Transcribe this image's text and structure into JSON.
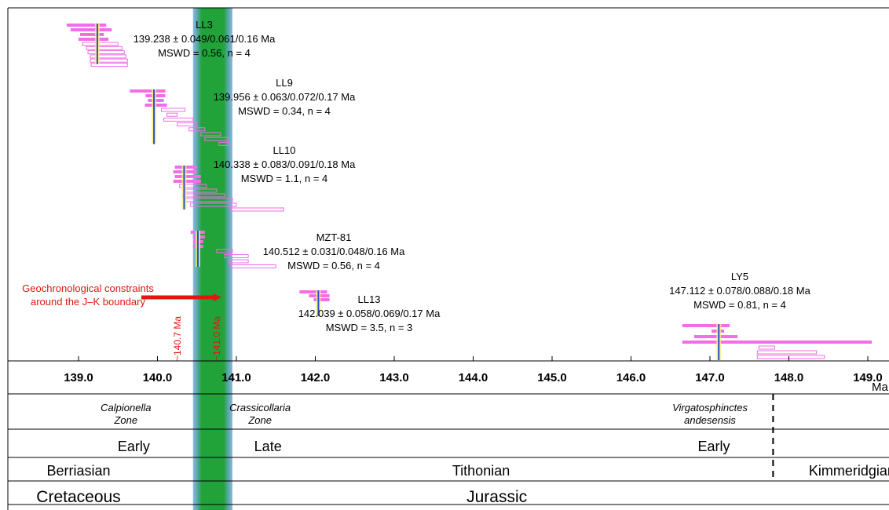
{
  "chart_data": {
    "type": "scatter",
    "x_unit": "Ma",
    "xlim": [
      138.2,
      149.5
    ],
    "ticks": [
      "139.0",
      "140.0",
      "141.0",
      "142.0",
      "143.0",
      "144.0",
      "145.0",
      "146.0",
      "147.0",
      "148.0",
      "149.0"
    ],
    "boundary_band": {
      "from": 140.45,
      "to": 140.95,
      "color": "#21a33a"
    },
    "samples": [
      {
        "name": "LL3",
        "result": "139.238 ± 0.049/0.061/0.16 Ma",
        "mswd": "MSWD = 0.56, n = 4",
        "mean": 139.238,
        "used": [
          [
            138.85,
            139.35
          ],
          [
            138.9,
            139.42
          ],
          [
            139.02,
            139.32
          ],
          [
            139.0,
            139.38
          ]
        ],
        "excluded": [
          [
            139.05,
            139.5
          ],
          [
            139.1,
            139.55
          ],
          [
            139.12,
            139.58
          ],
          [
            139.15,
            139.6
          ],
          [
            139.15,
            139.62
          ],
          [
            139.16,
            139.62
          ]
        ]
      },
      {
        "name": "LL9",
        "result": "139.956 ± 0.063/0.072/0.17 Ma",
        "mswd": "MSWD = 0.34, n = 4",
        "mean": 139.956,
        "used": [
          [
            139.65,
            140.1
          ],
          [
            139.85,
            140.1
          ],
          [
            139.88,
            140.08
          ],
          [
            139.84,
            140.12
          ]
        ],
        "excluded": [
          [
            140.05,
            140.35
          ],
          [
            140.12,
            140.25
          ],
          [
            140.08,
            140.45
          ],
          [
            140.25,
            140.5
          ],
          [
            140.4,
            140.6
          ],
          [
            140.55,
            140.8
          ],
          [
            140.6,
            140.9
          ],
          [
            140.78,
            140.9
          ]
        ]
      },
      {
        "name": "LL10",
        "result": "140.338 ± 0.083/0.091/0.18 Ma",
        "mswd": "MSWD = 1.1, n = 4",
        "mean": 140.338,
        "used": [
          [
            140.22,
            140.5
          ],
          [
            140.2,
            140.5
          ],
          [
            140.22,
            140.55
          ],
          [
            140.2,
            140.55
          ]
        ],
        "excluded": [
          [
            140.28,
            140.62
          ],
          [
            140.35,
            140.75
          ],
          [
            140.32,
            140.85
          ],
          [
            140.35,
            140.95
          ],
          [
            140.42,
            141.0
          ],
          [
            140.92,
            141.6
          ]
        ]
      },
      {
        "name": "MZT-81",
        "result": "140.512 ± 0.031/0.048/0.16 Ma",
        "mswd": "MSWD = 0.56, n = 4",
        "mean": 140.512,
        "used": [
          [
            140.42,
            140.6
          ],
          [
            140.45,
            140.6
          ],
          [
            140.46,
            140.58
          ],
          [
            140.45,
            140.58
          ]
        ],
        "excluded": [
          [
            140.75,
            140.95
          ],
          [
            140.85,
            141.15
          ],
          [
            140.9,
            141.15
          ],
          [
            140.92,
            141.5
          ]
        ]
      },
      {
        "name": "LL13",
        "result": "142.039 ± 0.058/0.069/0.17 Ma",
        "mswd": "MSWD = 3.5, n = 3",
        "mean": 142.039,
        "used": [
          [
            141.8,
            142.15
          ],
          [
            141.92,
            142.18
          ],
          [
            141.98,
            142.18
          ]
        ],
        "excluded": []
      },
      {
        "name": "LY5",
        "result": "147.112 ± 0.078/0.088/0.18 Ma",
        "mswd": "MSWD = 0.81, n = 4",
        "mean": 147.112,
        "used": [
          [
            146.65,
            147.25
          ],
          [
            147.02,
            147.18
          ],
          [
            146.8,
            147.35
          ],
          [
            146.65,
            149.05
          ]
        ],
        "excluded": [
          [
            147.62,
            147.82
          ],
          [
            147.6,
            148.35
          ],
          [
            147.6,
            148.45
          ]
        ]
      }
    ],
    "annotation": {
      "text_lines": [
        "Geochronological constraints",
        "around the J–K boundary"
      ],
      "vertical_labels": [
        {
          "text": "~140.7 Ma",
          "at": 140.55
        },
        {
          "text": "~141.0 Ma",
          "at": 141.05
        }
      ],
      "arrow_from": 139.95,
      "arrow_to": 140.8
    },
    "axis_unit_label": "Ma",
    "strat_rows": {
      "zones": [
        {
          "lines": [
            "Calpionella",
            "Zone"
          ],
          "at": 139.6
        },
        {
          "lines": [
            "Crassicollaria",
            "Zone"
          ],
          "at": 141.3
        },
        {
          "lines": [
            "Virgatosphinctes",
            "andesensis"
          ],
          "at": 147.0
        }
      ],
      "substages": [
        {
          "text": "Early",
          "at": 139.7
        },
        {
          "text": "Late",
          "at": 141.4
        },
        {
          "text": "Early",
          "at": 147.05
        }
      ],
      "stages": [
        {
          "text": "Berriasian",
          "at": 139.0
        },
        {
          "text": "Tithonian",
          "at": 144.1
        },
        {
          "text": "Kimmeridgian",
          "at": 148.8
        }
      ],
      "systems": [
        {
          "text": "Cretaceous",
          "at": 139.0
        },
        {
          "text": "Jurassic",
          "at": 144.3
        }
      ],
      "dashed_boundary_at": 147.8
    },
    "colors": {
      "used_bar": "#f26de6",
      "excluded_bar": "#f26de6",
      "mean_line": "#2c4fc9",
      "annotation": "#e3160e"
    }
  }
}
